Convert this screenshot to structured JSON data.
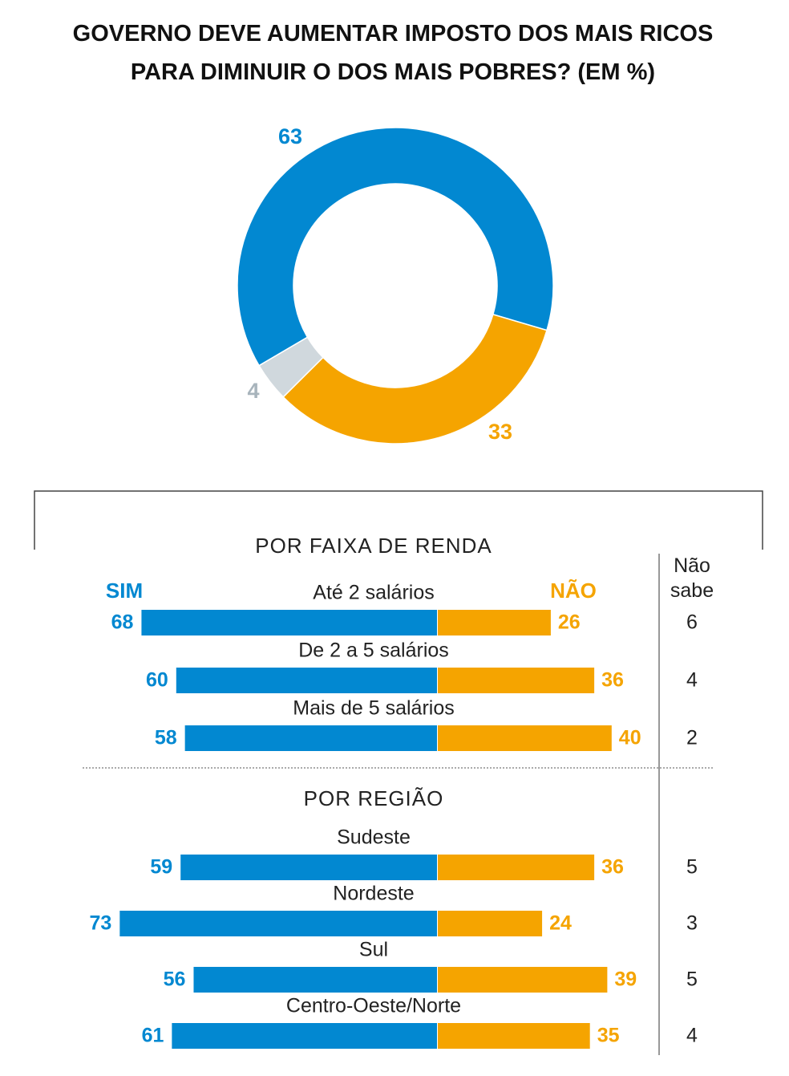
{
  "chart_data": [
    {
      "type": "pie",
      "title": "GOVERNO DEVE AUMENTAR IMPOSTO DOS MAIS RICOS PARA DIMINUIR O DOS MAIS POBRES? (EM %)",
      "values": [
        63,
        33,
        4
      ],
      "colors": [
        "#0288d1",
        "#f5a400",
        "#d0d8dd"
      ],
      "label_colors": [
        "#0288d1",
        "#f5a400",
        "#a8b4bc"
      ]
    },
    {
      "type": "diverging_bar",
      "title": "POR FAIXA DE RENDA",
      "categories": [
        "Até 2 salários",
        "De 2 a 5 salários",
        "Mais de 5 salários"
      ],
      "series": [
        {
          "name": "SIM",
          "color": "#0288d1",
          "values": [
            68,
            60,
            58
          ]
        },
        {
          "name": "NÃO",
          "color": "#f5a400",
          "values": [
            26,
            36,
            40
          ]
        },
        {
          "name": "Não sabe",
          "color": "#222222",
          "values": [
            6,
            4,
            2
          ]
        }
      ]
    },
    {
      "type": "diverging_bar",
      "title": "POR REGIÃO",
      "categories": [
        "Sudeste",
        "Nordeste",
        "Sul",
        "Centro-Oeste/Norte"
      ],
      "series": [
        {
          "color": "#0288d1",
          "values": [
            59,
            73,
            56,
            61
          ]
        },
        {
          "color": "#f5a400",
          "values": [
            36,
            24,
            39,
            35
          ]
        },
        {
          "color": "#222222",
          "values": [
            5,
            3,
            5,
            4
          ]
        }
      ]
    }
  ]
}
